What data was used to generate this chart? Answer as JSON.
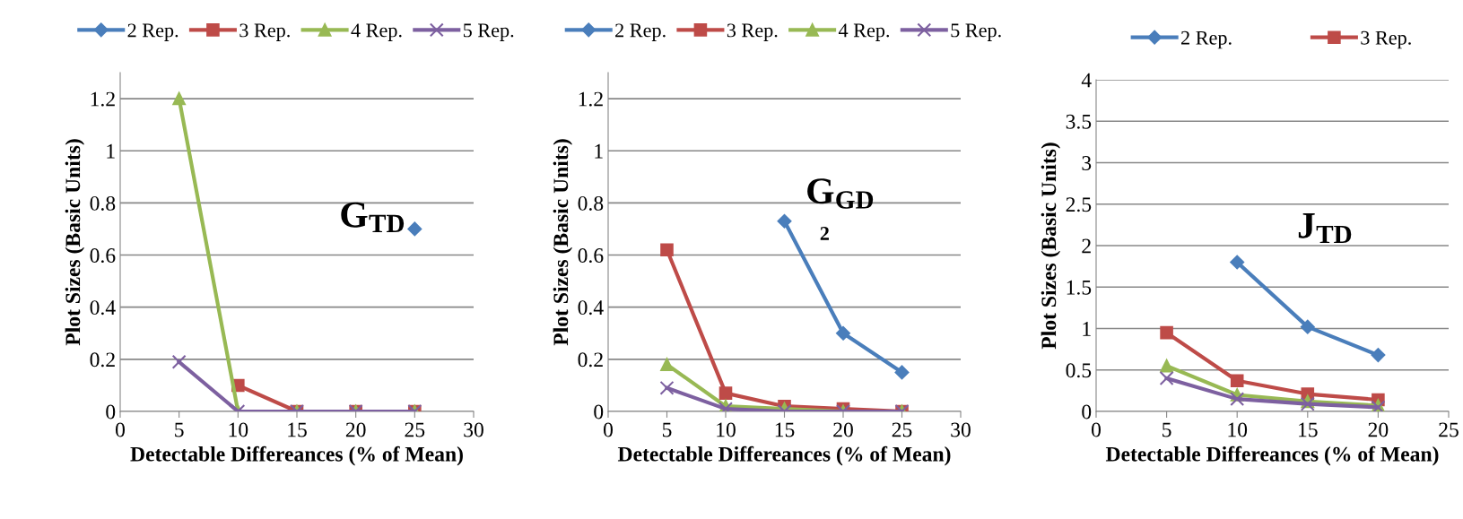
{
  "chart_data": [
    {
      "type": "line",
      "xlabel": "Detectable Differeances (% of Mean)",
      "ylabel": "Plot Sizes (Basic Units)",
      "x": [
        5,
        10,
        15,
        20,
        25
      ],
      "xlim": [
        0,
        30
      ],
      "xticks": [
        0,
        5,
        10,
        15,
        20,
        25,
        30
      ],
      "ylim": [
        0,
        1.3
      ],
      "yticks": [
        0,
        0.2,
        0.4,
        0.6,
        0.8,
        1,
        1.2
      ],
      "grid": "y",
      "legend": "top",
      "annotations": [
        "G$_{TD}$"
      ],
      "series": [
        {
          "name": "2 Rep.",
          "color": "#4a7ebb",
          "marker": "diamond",
          "values": [
            null,
            null,
            null,
            null,
            0.7
          ]
        },
        {
          "name": "3 Rep.",
          "color": "#be4b48",
          "marker": "square",
          "values": [
            null,
            0.1,
            0,
            0,
            0
          ]
        },
        {
          "name": "4 Rep.",
          "color": "#98b954",
          "marker": "triangle",
          "values": [
            1.2,
            0,
            0,
            0,
            0
          ]
        },
        {
          "name": "5 Rep.",
          "color": "#7d60a0",
          "marker": "cross",
          "values": [
            0.19,
            0,
            0,
            0,
            0
          ]
        }
      ]
    },
    {
      "type": "line",
      "xlabel": "Detectable Differeances (% of Mean)",
      "ylabel": "Plot Sizes (Basic Units)",
      "x": [
        5,
        10,
        15,
        20,
        25
      ],
      "xlim": [
        0,
        30
      ],
      "xticks": [
        0,
        5,
        10,
        15,
        20,
        25,
        30
      ],
      "ylim": [
        0,
        1.3
      ],
      "yticks": [
        0,
        0.2,
        0.4,
        0.6,
        0.8,
        1,
        1.2
      ],
      "grid": "y",
      "legend": "top",
      "annotations": [
        "G$_{GD}$",
        "2"
      ],
      "series": [
        {
          "name": "2 Rep.",
          "color": "#4a7ebb",
          "marker": "diamond",
          "values": [
            null,
            null,
            0.73,
            0.3,
            0.15
          ]
        },
        {
          "name": "3 Rep.",
          "color": "#be4b48",
          "marker": "square",
          "values": [
            0.62,
            0.07,
            0.02,
            0.01,
            0
          ]
        },
        {
          "name": "4 Rep.",
          "color": "#98b954",
          "marker": "triangle",
          "values": [
            0.18,
            0.02,
            0.01,
            0,
            0
          ]
        },
        {
          "name": "5 Rep.",
          "color": "#7d60a0",
          "marker": "cross",
          "values": [
            0.09,
            0.01,
            0,
            0,
            0
          ]
        }
      ]
    },
    {
      "type": "line",
      "xlabel": "Detectable Differeances (% of Mean)",
      "ylabel": "Plot Sizes (Basic Units)",
      "x": [
        5,
        10,
        15,
        20
      ],
      "xlim": [
        0,
        25
      ],
      "xticks": [
        0,
        5,
        10,
        15,
        20,
        25
      ],
      "ylim": [
        0,
        4
      ],
      "yticks": [
        0,
        0.5,
        1,
        1.5,
        2,
        2.5,
        3,
        3.5,
        4
      ],
      "grid": "y",
      "legend": "top",
      "annotations": [
        "J$_{TD}$"
      ],
      "series": [
        {
          "name": "2 Rep.",
          "color": "#4a7ebb",
          "marker": "diamond",
          "values": [
            null,
            1.8,
            1.02,
            0.68
          ]
        },
        {
          "name": "3 Rep.",
          "color": "#be4b48",
          "marker": "square",
          "values": [
            0.95,
            0.37,
            0.21,
            0.14
          ]
        },
        {
          "color": "#98b954",
          "marker": "triangle",
          "values": [
            0.55,
            0.2,
            0.12,
            0.07
          ]
        },
        {
          "color": "#7d60a0",
          "marker": "cross",
          "values": [
            0.4,
            0.15,
            0.09,
            0.05
          ]
        }
      ]
    }
  ]
}
